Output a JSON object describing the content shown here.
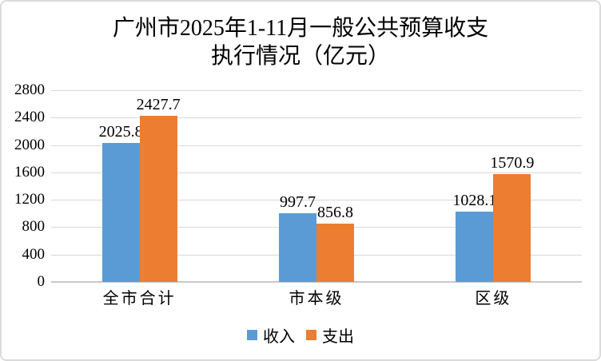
{
  "chart_data": {
    "type": "bar",
    "title_lines": [
      "广州市2025年1-11月一般公共预算收支",
      "执行情况（亿元）"
    ],
    "categories": [
      "全市合计",
      "市本级",
      "区级"
    ],
    "series": [
      {
        "key": "income",
        "name": "收入",
        "color": "#5B9BD5",
        "values": [
          2025.8,
          997.7,
          1028.1
        ]
      },
      {
        "key": "expenditure",
        "name": "支出",
        "color": "#ED7D31",
        "values": [
          2427.7,
          856.8,
          1570.9
        ]
      }
    ],
    "ylim": [
      0,
      2800
    ],
    "yticks": [
      0,
      400,
      800,
      1200,
      1600,
      2000,
      2400,
      2800
    ],
    "grid": true,
    "legend_position": "bottom",
    "colors": {
      "gridline": "#D9D9D9",
      "axis_line": "#C9C9C9",
      "frame_border": "#DBDBDB",
      "text": "#000000",
      "background": "#FFFFFF"
    }
  }
}
